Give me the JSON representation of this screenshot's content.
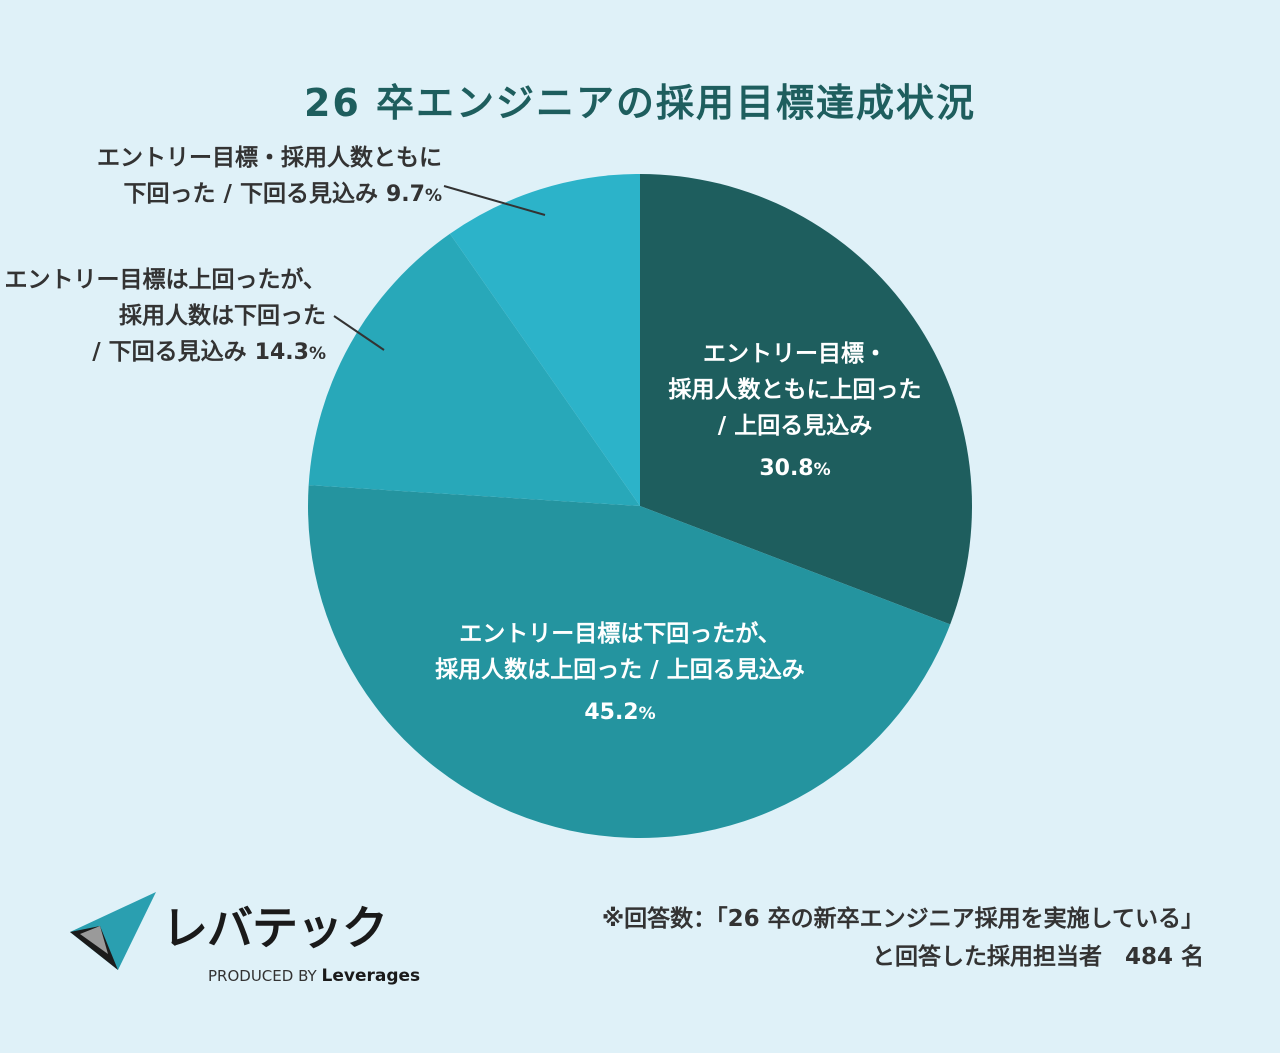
{
  "chart_data": {
    "type": "pie",
    "title": "26 卒エンジニアの採用目標達成状況",
    "slices": [
      {
        "lines": [
          "エントリー目標・",
          "採用人数ともに上回った",
          "/ 上回る見込み"
        ],
        "value": 30.8,
        "pct": "30.8",
        "color": "#1e5e5e"
      },
      {
        "lines": [
          "エントリー目標は下回ったが、",
          "採用人数は上回った / 上回る見込み"
        ],
        "value": 45.2,
        "pct": "45.2",
        "color": "#24949f"
      },
      {
        "lines": [
          "エントリー目標は上回ったが、",
          "採用人数は下回った",
          "/ 下回る見込み"
        ],
        "value": 14.3,
        "pct": "14.3",
        "color": "#28a8b9"
      },
      {
        "lines": [
          "エントリー目標・採用人数ともに",
          "下回った / 下回る見込み"
        ],
        "value": 9.7,
        "pct": "9.7",
        "color": "#2cb3c9"
      }
    ],
    "percent_sign": "%"
  },
  "note": {
    "line1": "※回答数：「26 卒の新卒エンジニア採用を実施している」",
    "line2": "と回答した採用担当者　484 名"
  },
  "logo": {
    "wordmark": "レバテック",
    "produced_by": "PRODUCED BY",
    "brand": "Leverages"
  }
}
